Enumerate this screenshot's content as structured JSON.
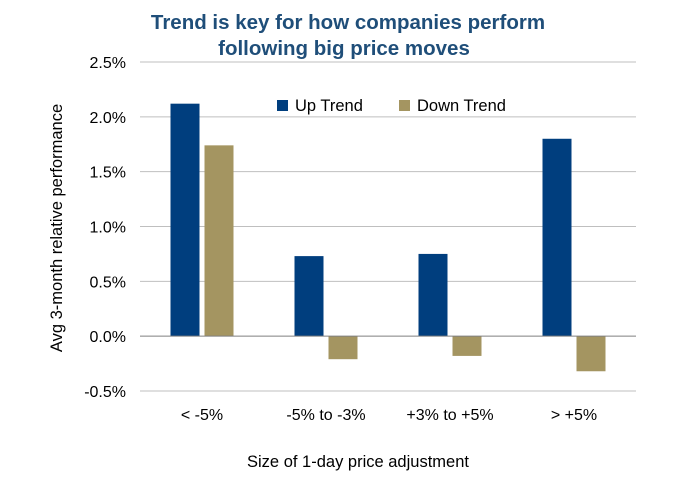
{
  "chart_data": {
    "type": "bar",
    "title": "Trend is key for how companies perform",
    "subtitle": "following big price moves",
    "xlabel": "Size of 1-day price adjustment",
    "ylabel": "Avg 3-month relative performance",
    "categories": [
      "< -5%",
      "-5% to -3%",
      "+3% to +5%",
      "> +5%"
    ],
    "series": [
      {
        "name": "Up Trend",
        "color": "#003e7e",
        "values": [
          2.12,
          0.73,
          0.75,
          1.8
        ]
      },
      {
        "name": "Down Trend",
        "color": "#a49561",
        "values": [
          1.74,
          -0.21,
          -0.18,
          -0.32
        ]
      }
    ],
    "ylim": [
      -0.5,
      2.5
    ],
    "y_ticks": [
      2.5,
      2.0,
      1.5,
      1.0,
      0.5,
      0.0,
      -0.5
    ],
    "y_tick_labels": [
      "2.5%",
      "2.0%",
      "1.5%",
      "1.0%",
      "0.5%",
      "0.0%",
      "-0.5%"
    ],
    "grid": true,
    "legend_position": "top-center"
  }
}
